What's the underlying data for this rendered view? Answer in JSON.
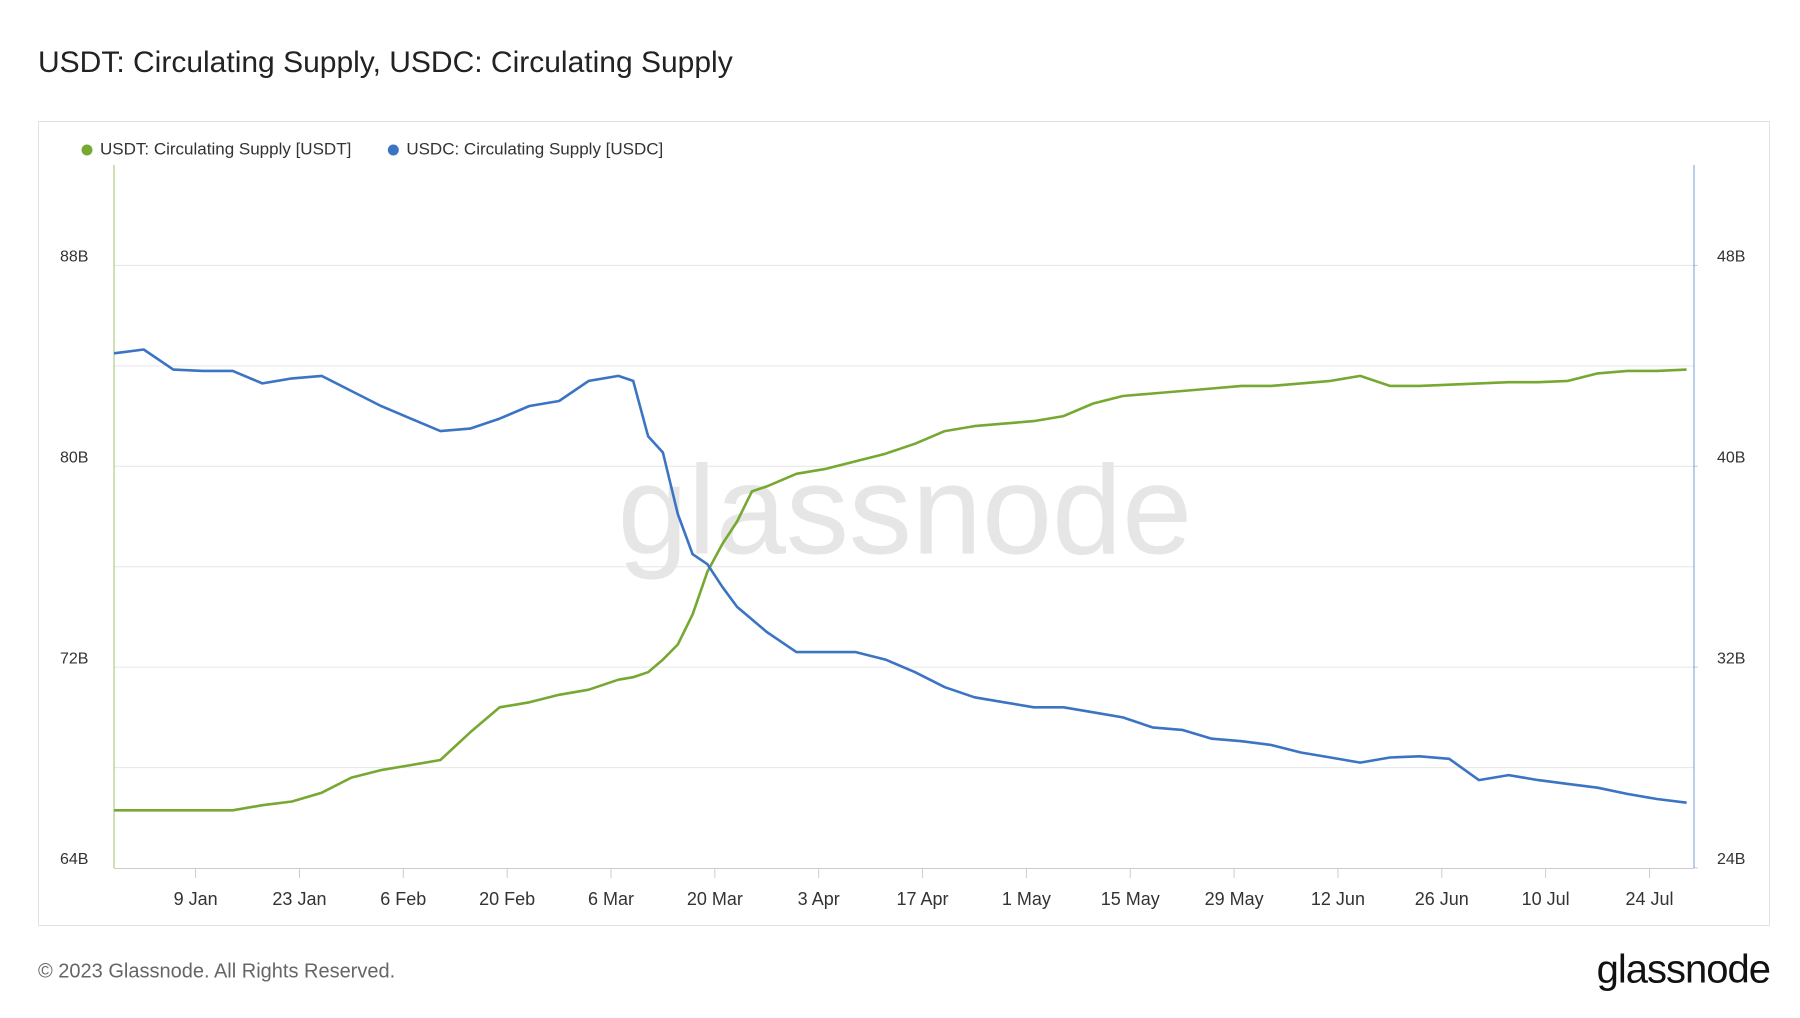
{
  "chart_data": {
    "type": "line",
    "title": "USDT: Circulating Supply, USDC: Circulating Supply",
    "x": [
      "29 Dec",
      "2 Jan",
      "6 Jan",
      "10 Jan",
      "14 Jan",
      "18 Jan",
      "22 Jan",
      "26 Jan",
      "30 Jan",
      "3 Feb",
      "7 Feb",
      "11 Feb",
      "15 Feb",
      "19 Feb",
      "23 Feb",
      "27 Feb",
      "3 Mar",
      "7 Mar",
      "9 Mar",
      "11 Mar",
      "13 Mar",
      "15 Mar",
      "17 Mar",
      "19 Mar",
      "21 Mar",
      "23 Mar",
      "25 Mar",
      "27 Mar",
      "31 Mar",
      "4 Apr",
      "8 Apr",
      "12 Apr",
      "16 Apr",
      "20 Apr",
      "24 Apr",
      "28 Apr",
      "2 May",
      "6 May",
      "10 May",
      "14 May",
      "18 May",
      "22 May",
      "26 May",
      "30 May",
      "3 Jun",
      "7 Jun",
      "11 Jun",
      "15 Jun",
      "19 Jun",
      "23 Jun",
      "27 Jun",
      "1 Jul",
      "5 Jul",
      "9 Jul",
      "13 Jul",
      "17 Jul",
      "21 Jul",
      "25 Jul",
      "29 Jul"
    ],
    "series": [
      {
        "name": "USDT: Circulating Supply [USDT]",
        "color": "#76a832",
        "axis": "y",
        "values": [
          66.3,
          66.3,
          66.3,
          66.3,
          66.3,
          66.5,
          66.65,
          67.0,
          67.6,
          67.9,
          68.1,
          68.3,
          69.4,
          70.4,
          70.6,
          70.9,
          71.1,
          71.5,
          71.6,
          71.8,
          72.3,
          72.9,
          74.1,
          75.8,
          76.9,
          77.8,
          79.0,
          79.2,
          79.7,
          79.9,
          80.2,
          80.5,
          80.9,
          81.4,
          81.6,
          81.7,
          81.8,
          82.0,
          82.5,
          82.8,
          82.9,
          83.0,
          83.1,
          83.2,
          83.2,
          83.3,
          83.4,
          83.6,
          83.2,
          83.2,
          83.25,
          83.3,
          83.35,
          83.35,
          83.4,
          83.7,
          83.8,
          83.8,
          83.85
        ]
      },
      {
        "name": "USDC: Circulating Supply [USDC]",
        "color": "#3b74c4",
        "axis": "y2",
        "values": [
          44.5,
          44.65,
          43.85,
          43.8,
          43.8,
          43.3,
          43.5,
          43.6,
          43.0,
          42.4,
          41.9,
          41.4,
          41.5,
          41.9,
          42.4,
          42.6,
          43.4,
          43.6,
          43.4,
          41.2,
          40.55,
          38.1,
          36.5,
          36.1,
          35.2,
          34.4,
          33.9,
          33.4,
          32.6,
          32.6,
          32.6,
          32.3,
          31.8,
          31.2,
          30.8,
          30.6,
          30.4,
          30.4,
          30.2,
          30.0,
          29.6,
          29.5,
          29.15,
          29.05,
          28.9,
          28.6,
          28.4,
          28.2,
          28.4,
          28.45,
          28.35,
          27.5,
          27.7,
          27.5,
          27.35,
          27.2,
          26.95,
          26.75,
          26.6
        ]
      }
    ],
    "xlim": [
      "29 Dec",
      "30 Jul"
    ],
    "xticks": [
      "9 Jan",
      "23 Jan",
      "6 Feb",
      "20 Feb",
      "6 Mar",
      "20 Mar",
      "3 Apr",
      "17 Apr",
      "1 May",
      "15 May",
      "29 May",
      "12 Jun",
      "26 Jun",
      "10 Jul",
      "24 Jul"
    ],
    "ylim": [
      64,
      92
    ],
    "yticks": [
      {
        "value": 64,
        "label": "64B"
      },
      {
        "value": 68,
        "label": null
      },
      {
        "value": 72,
        "label": "72B"
      },
      {
        "value": 76,
        "label": null
      },
      {
        "value": 80,
        "label": "80B"
      },
      {
        "value": 84,
        "label": null
      },
      {
        "value": 88,
        "label": "88B"
      }
    ],
    "y2lim": [
      24,
      52
    ],
    "y2ticks": [
      {
        "value": 24,
        "label": "24B"
      },
      {
        "value": 32,
        "label": "32B"
      },
      {
        "value": 40,
        "label": "40B"
      },
      {
        "value": 48,
        "label": "48B"
      }
    ],
    "grid": true,
    "legend": "top-left",
    "watermark": "glassnode"
  },
  "footer": {
    "copyright": "© 2023 Glassnode. All Rights Reserved.",
    "logo": "glassnode"
  }
}
